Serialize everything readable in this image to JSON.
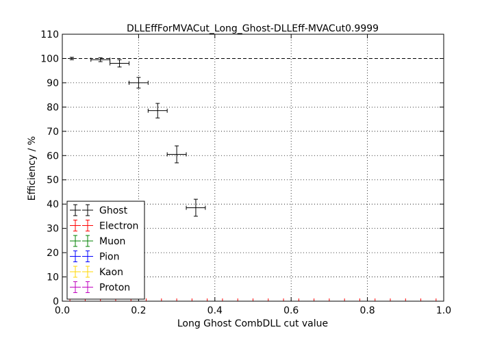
{
  "chart_data": {
    "type": "scatter",
    "title": "DLLEffForMVACut_Long_Ghost-DLLEff-MVACut0.9999",
    "xlabel": "Long Ghost CombDLL cut value",
    "ylabel": "Efficiency / %",
    "xlim": [
      0.0,
      1.0
    ],
    "ylim": [
      0,
      110
    ],
    "xticks": [
      "0.0",
      "0.2",
      "0.4",
      "0.6",
      "0.8",
      "1.0"
    ],
    "xtick_values": [
      0.0,
      0.2,
      0.4,
      0.6,
      0.8,
      1.0
    ],
    "yticks": [
      "0",
      "10",
      "20",
      "30",
      "40",
      "50",
      "60",
      "70",
      "80",
      "90",
      "100",
      "110"
    ],
    "ytick_values": [
      0,
      10,
      20,
      30,
      40,
      50,
      60,
      70,
      80,
      90,
      100,
      110
    ],
    "grid": true,
    "reference_line": {
      "y": 100,
      "style": "dashed"
    },
    "legend_position": "lower-left",
    "series": [
      {
        "name": "Ghost",
        "color": "#000000",
        "points": [
          {
            "x": 0.025,
            "xerr": 0.0,
            "y": 100.0,
            "yerr": 0.5
          },
          {
            "x": 0.1,
            "xerr": 0.025,
            "y": 99.5,
            "yerr": 0.8
          },
          {
            "x": 0.15,
            "xerr": 0.025,
            "y": 98.0,
            "yerr": 1.5
          },
          {
            "x": 0.2,
            "xerr": 0.025,
            "y": 90.0,
            "yerr": 2.2
          },
          {
            "x": 0.25,
            "xerr": 0.025,
            "y": 78.5,
            "yerr": 3.0
          },
          {
            "x": 0.3,
            "xerr": 0.025,
            "y": 60.5,
            "yerr": 3.5
          },
          {
            "x": 0.35,
            "xerr": 0.025,
            "y": 38.5,
            "yerr": 3.5
          }
        ]
      },
      {
        "name": "Electron",
        "color": "#ff0000",
        "points": []
      },
      {
        "name": "Muon",
        "color": "#008000",
        "points": []
      },
      {
        "name": "Pion",
        "color": "#0000ff",
        "points": []
      },
      {
        "name": "Kaon",
        "color": "#ffd700",
        "points": []
      },
      {
        "name": "Proton",
        "color": "#bf00bf",
        "points": []
      }
    ],
    "bottom_axis_red_ticks": [
      0.02,
      0.06,
      0.1,
      0.14,
      0.18,
      0.22,
      0.26,
      0.3,
      0.34,
      0.38,
      0.42,
      0.46,
      0.5,
      0.54,
      0.58,
      0.62,
      0.66,
      0.7,
      0.74,
      0.78,
      0.82,
      0.86,
      0.9,
      0.94,
      0.98
    ]
  }
}
